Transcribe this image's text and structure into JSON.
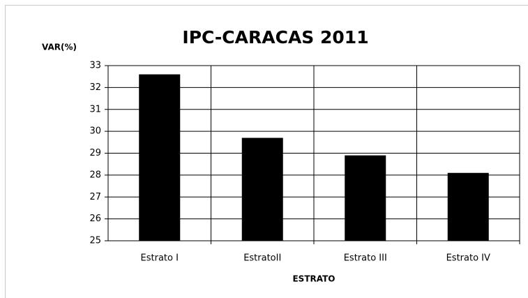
{
  "chart_data": {
    "type": "bar",
    "title": "IPC-CARACAS 2011",
    "y_label": "VAR(%)",
    "x_label": "ESTRATO",
    "categories": [
      "Estrato I",
      "EstratoII",
      "Estrato III",
      "Estrato IV"
    ],
    "values": [
      32.6,
      29.7,
      28.9,
      28.1
    ],
    "color": "#000000",
    "ylim": [
      25,
      33
    ],
    "yticks": [
      25,
      26,
      27,
      28,
      29,
      30,
      31,
      32,
      33
    ],
    "grid": true
  }
}
